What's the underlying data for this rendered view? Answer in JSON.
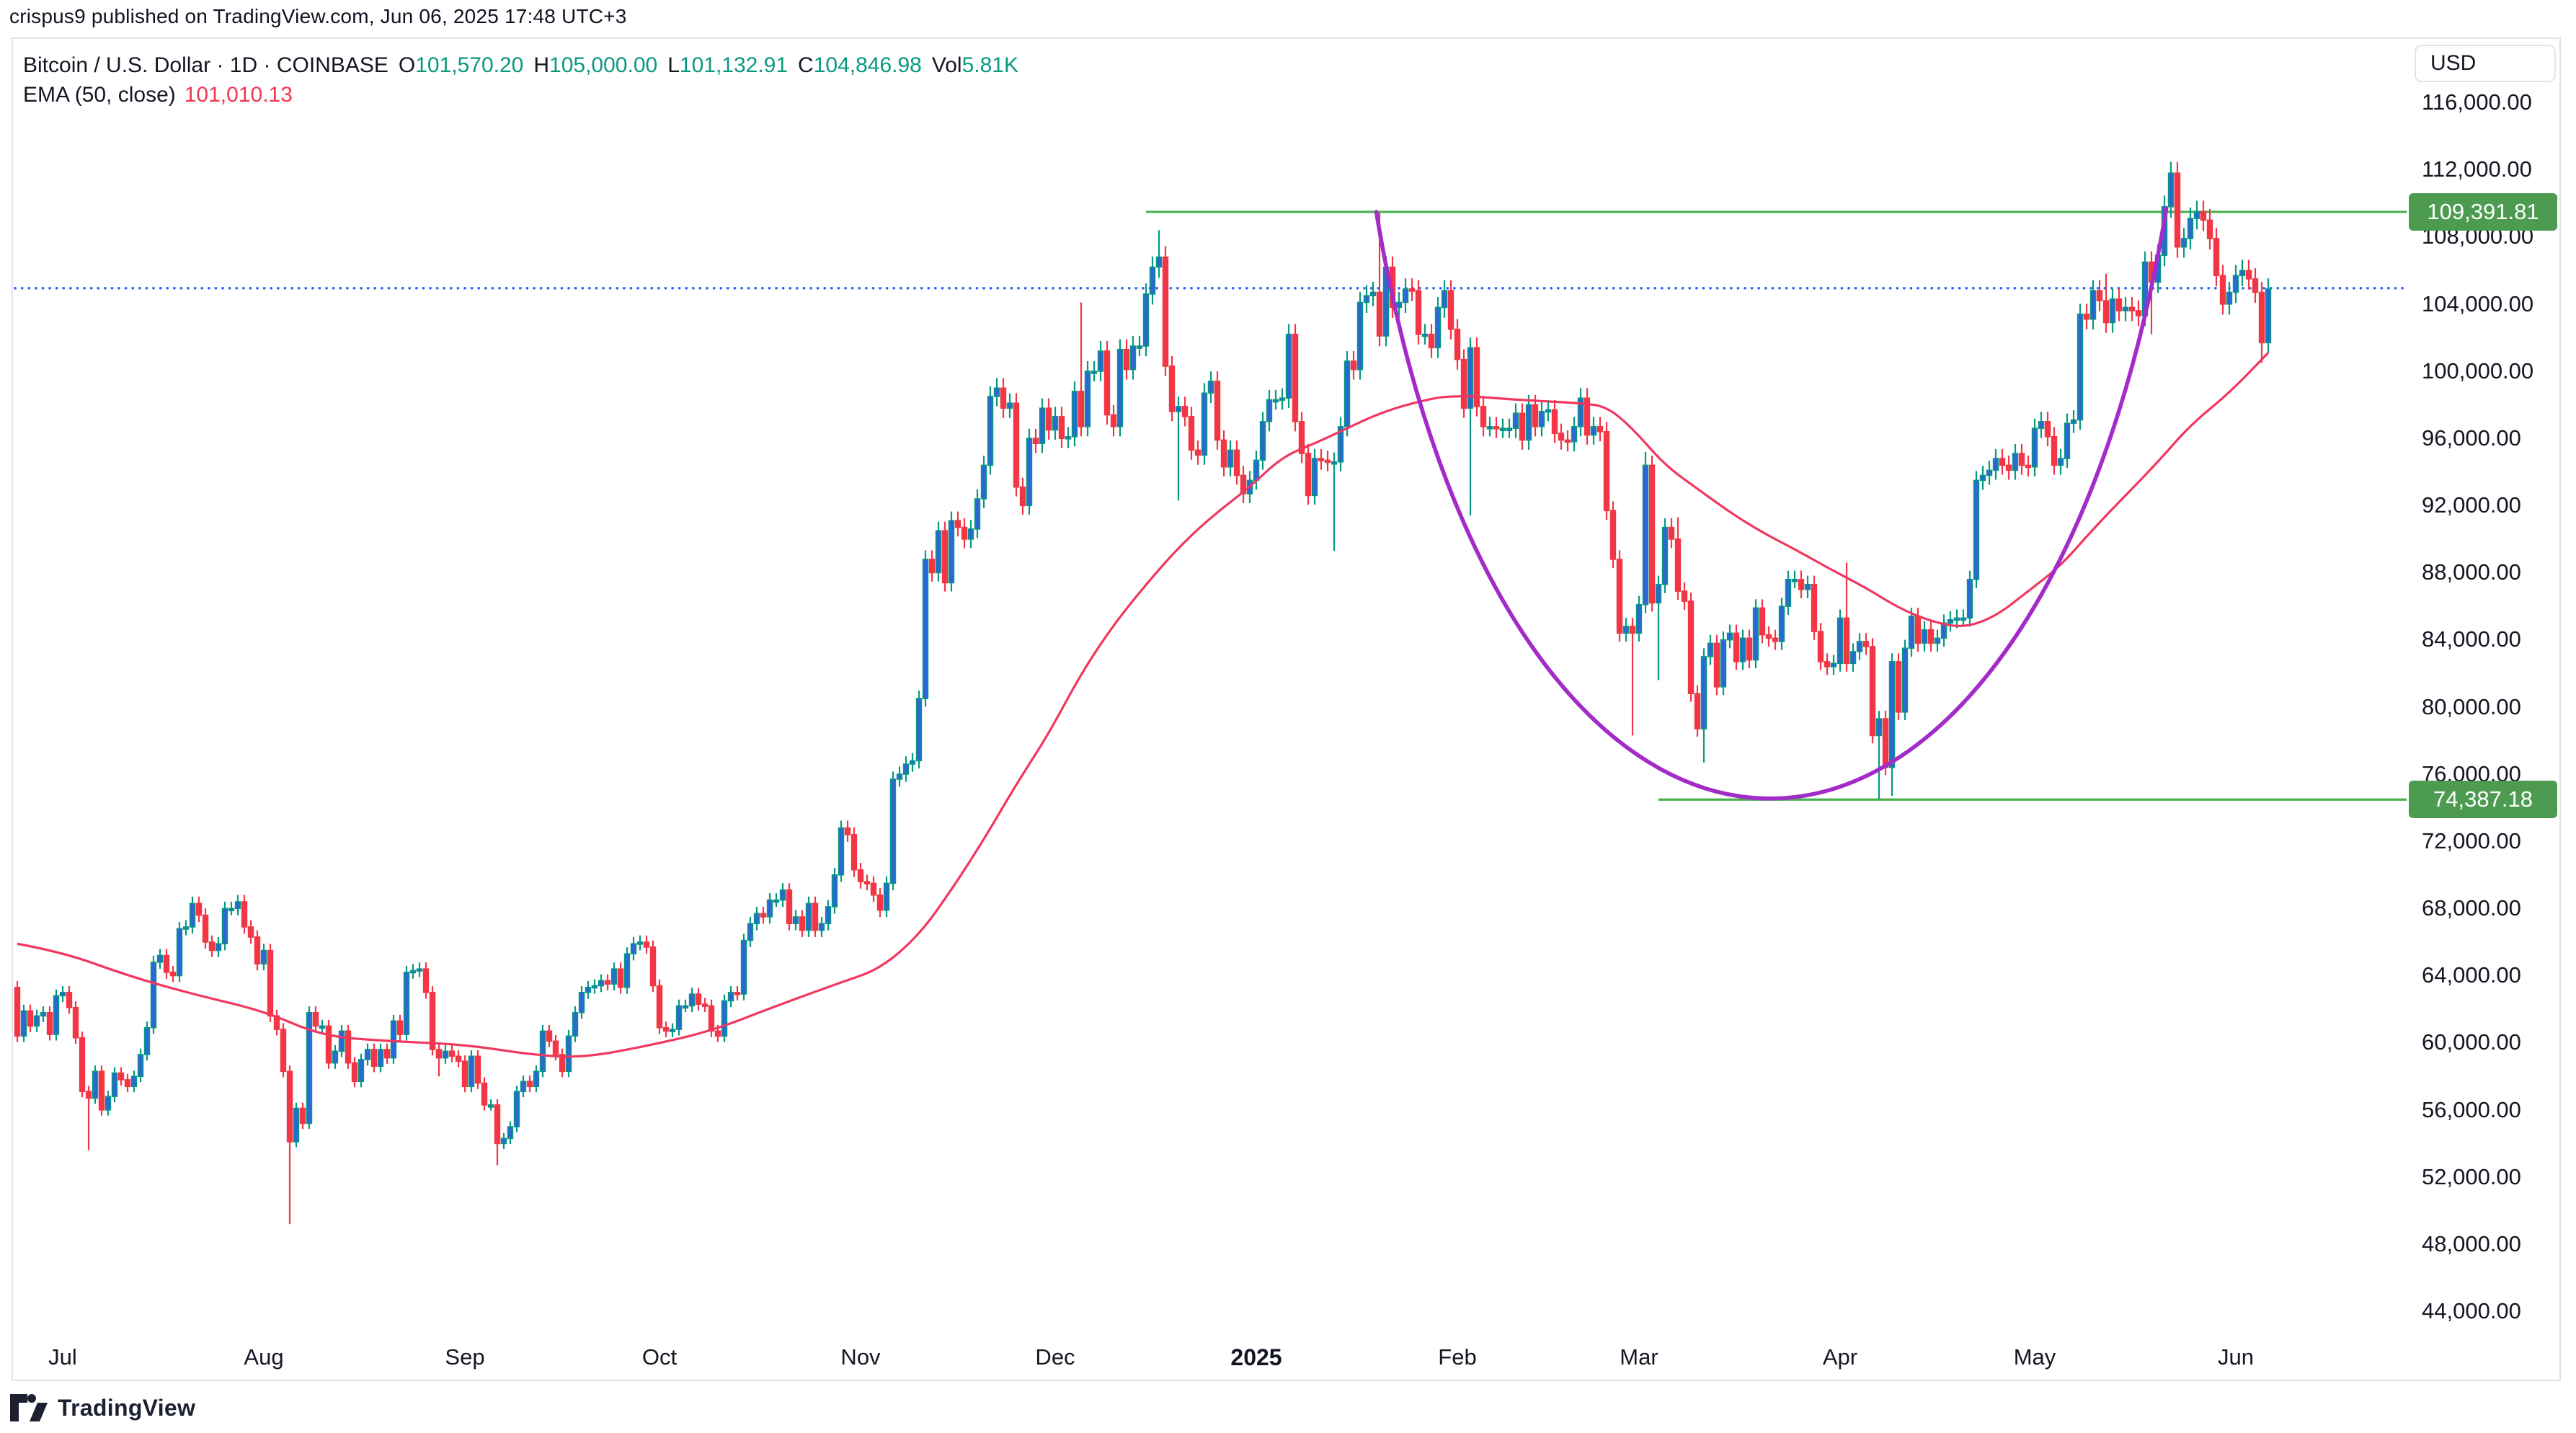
{
  "attribution": "crispus9 published on TradingView.com, Jun 06, 2025 17:48 UTC+3",
  "legend": {
    "symbol": "Bitcoin / U.S. Dollar",
    "interval": "1D",
    "exchange": "COINBASE",
    "separator": "·",
    "fields": [
      {
        "label": "O",
        "value": "101,570.20"
      },
      {
        "label": "H",
        "value": "105,000.00"
      },
      {
        "label": "L",
        "value": "101,132.91"
      },
      {
        "label": "C",
        "value": "104,846.98"
      },
      {
        "label": "Vol",
        "value": "5.81K"
      }
    ],
    "indicator": {
      "name": "EMA (50, close)",
      "value": "101,010.13"
    }
  },
  "price_scale": {
    "unit": "USD",
    "ticks": [
      "116,000.00",
      "112,000.00",
      "108,000.00",
      "104,000.00",
      "100,000.00",
      "96,000.00",
      "92,000.00",
      "88,000.00",
      "84,000.00",
      "80,000.00",
      "76,000.00",
      "72,000.00",
      "68,000.00",
      "64,000.00",
      "60,000.00",
      "56,000.00",
      "52,000.00",
      "48,000.00",
      "44,000.00"
    ],
    "tick_values_k": [
      116,
      112,
      108,
      104,
      100,
      96,
      92,
      88,
      84,
      80,
      76,
      72,
      68,
      64,
      60,
      56,
      52,
      48,
      44
    ],
    "badges": [
      {
        "text": "109,391.81",
        "price_k": 109.39181
      },
      {
        "text": "74,387.18",
        "price_k": 74.38718
      }
    ]
  },
  "time_scale": {
    "labels": [
      {
        "text": "Jul",
        "day": 0,
        "bold": false
      },
      {
        "text": "Aug",
        "day": 31,
        "bold": false
      },
      {
        "text": "Sep",
        "day": 62,
        "bold": false
      },
      {
        "text": "Oct",
        "day": 92,
        "bold": false
      },
      {
        "text": "Nov",
        "day": 123,
        "bold": false
      },
      {
        "text": "Dec",
        "day": 153,
        "bold": false
      },
      {
        "text": "2025",
        "day": 184,
        "bold": true
      },
      {
        "text": "Feb",
        "day": 215,
        "bold": false
      },
      {
        "text": "Mar",
        "day": 243,
        "bold": false
      },
      {
        "text": "Apr",
        "day": 274,
        "bold": false
      },
      {
        "text": "May",
        "day": 304,
        "bold": false
      },
      {
        "text": "Jun",
        "day": 335,
        "bold": false
      }
    ]
  },
  "logo_text": "TradingView",
  "colors": {
    "up_wick": "#089981",
    "up_body": "#2B67D6",
    "down": "#F23645",
    "ema": "#F1375F",
    "purple": "#A32CC8",
    "level_line": "#4CAF50",
    "level_badge": "#4C9B50",
    "price_line": "#2962FF",
    "text": "#131722",
    "border": "#E0E3EB"
  },
  "chart_data": {
    "type": "candlestick",
    "title": "Bitcoin / U.S. Dollar, 1D, COINBASE with EMA(50) and cup pattern drawing",
    "x_unit": "days since 2024-07-01 (first bar 2024-06-24 = day -7, last bar 2025-06-06 = day 340)",
    "y_unit": "USD (values in thousands)",
    "ylim_k": [
      44,
      116
    ],
    "grid": false,
    "first_day": -7,
    "open_first_k": 63.2,
    "closes_k": [
      60.3,
      61.8,
      60.9,
      61.5,
      61.7,
      60.4,
      62.7,
      62.9,
      62.0,
      60.2,
      57.0,
      56.6,
      58.2,
      55.9,
      56.7,
      58.1,
      57.7,
      57.3,
      57.9,
      59.2,
      60.8,
      64.7,
      65.1,
      64.1,
      63.9,
      66.7,
      66.8,
      68.2,
      67.5,
      65.9,
      65.4,
      65.8,
      67.9,
      67.9,
      68.3,
      66.8,
      66.2,
      64.6,
      65.4,
      61.5,
      60.7,
      58.2,
      54.0,
      56.0,
      55.1,
      61.7,
      60.9,
      60.9,
      58.7,
      59.4,
      60.6,
      58.7,
      57.6,
      58.9,
      59.5,
      58.5,
      59.5,
      59.0,
      61.2,
      60.4,
      64.1,
      64.2,
      64.3,
      62.9,
      59.5,
      59.0,
      59.4,
      59.1,
      58.8,
      57.3,
      59.1,
      57.5,
      56.2,
      56.2,
      53.9,
      54.2,
      54.9,
      57.0,
      57.6,
      57.3,
      58.2,
      60.6,
      60.0,
      59.2,
      58.2,
      60.3,
      61.7,
      62.9,
      63.2,
      63.3,
      63.6,
      63.4,
      64.3,
      63.2,
      65.2,
      65.8,
      65.9,
      65.6,
      63.3,
      60.8,
      60.6,
      60.7,
      62.1,
      62.1,
      62.8,
      62.2,
      62.1,
      60.6,
      60.3,
      62.4,
      62.9,
      62.8,
      66.0,
      67.0,
      67.6,
      67.4,
      68.4,
      68.4,
      69.0,
      67.0,
      67.4,
      66.6,
      68.2,
      66.6,
      67.0,
      68.0,
      69.9,
      72.7,
      72.3,
      70.2,
      69.5,
      69.4,
      68.7,
      67.8,
      69.4,
      75.6,
      75.9,
      76.5,
      76.7,
      80.4,
      88.7,
      87.9,
      90.4,
      87.3,
      91.0,
      90.6,
      89.9,
      90.5,
      92.3,
      94.3,
      98.4,
      98.9,
      97.7,
      98.0,
      93.0,
      91.9,
      95.9,
      95.6,
      97.7,
      96.4,
      97.2,
      95.9,
      96.0,
      98.7,
      96.6,
      99.9,
      99.9,
      101.1,
      97.3,
      96.6,
      101.2,
      100.0,
      101.4,
      101.4,
      104.5,
      106.1,
      106.7,
      100.2,
      97.5,
      97.8,
      97.2,
      95.2,
      94.9,
      98.6,
      99.3,
      95.8,
      94.2,
      95.2,
      93.7,
      92.6,
      93.4,
      94.6,
      96.9,
      98.2,
      98.2,
      98.3,
      102.1,
      96.9,
      95.0,
      92.5,
      94.7,
      94.6,
      94.5,
      94.5,
      96.6,
      100.5,
      100.0,
      104.0,
      104.4,
      104.6,
      102.0,
      106.1,
      103.7,
      104.0,
      104.8,
      104.7,
      102.1,
      102.1,
      101.3,
      103.7,
      104.7,
      102.4,
      100.6,
      97.7,
      101.3,
      97.8,
      96.6,
      96.6,
      96.5,
      96.5,
      96.5,
      97.4,
      95.8,
      97.9,
      96.6,
      97.5,
      97.6,
      96.2,
      95.8,
      95.7,
      96.6,
      98.3,
      96.1,
      96.6,
      96.3,
      91.6,
      88.7,
      84.3,
      84.7,
      84.3,
      86.0,
      94.3,
      86.1,
      87.2,
      90.6,
      89.9,
      86.8,
      86.2,
      80.7,
      78.6,
      82.9,
      83.7,
      81.1,
      83.9,
      84.3,
      82.6,
      84.0,
      82.7,
      85.8,
      84.2,
      84.0,
      83.8,
      85.9,
      87.5,
      87.5,
      86.9,
      87.2,
      84.4,
      82.6,
      82.3,
      82.5,
      85.2,
      82.5,
      83.2,
      83.8,
      83.5,
      78.2,
      79.2,
      76.3,
      82.6,
      79.6,
      83.4,
      85.3,
      83.7,
      84.5,
      83.7,
      84.0,
      84.9,
      85.1,
      85.2,
      85.2,
      87.5,
      93.4,
      93.7,
      94.0,
      94.7,
      94.3,
      94.0,
      95.0,
      94.3,
      94.2,
      96.5,
      96.9,
      96.0,
      94.3,
      94.7,
      96.8,
      97.0,
      103.3,
      103.0,
      104.7,
      104.1,
      102.8,
      104.2,
      103.5,
      103.7,
      103.5,
      103.2,
      106.4,
      105.2,
      106.8,
      109.7,
      111.7,
      107.3,
      107.8,
      109.0,
      109.4,
      108.9,
      107.8,
      105.6,
      103.9,
      104.6,
      105.6,
      105.9,
      105.4,
      104.6,
      101.6,
      104.8
    ],
    "default_wick_pct": 0.6,
    "wick_highs_k": {
      "157": 104.0,
      "169": 108.3,
      "189": 102.7,
      "203": 109.36,
      "244": 95.1,
      "249": 91.2,
      "275": 88.5,
      "315": 105.7,
      "325": 112.0,
      "340": 105.0
    },
    "wick_lows_k": {
      "4": 53.5,
      "35": 49.1,
      "58": 57.9,
      "67": 52.6,
      "172": 92.2,
      "196": 89.2,
      "217": 91.3,
      "242": 78.2,
      "246": 81.5,
      "253": 76.6,
      "280": 74.4,
      "282": 74.6,
      "322": 102.1,
      "339": 100.4,
      "340": 101.1
    },
    "ema": {
      "name": "EMA (50, close)",
      "last_value": 101010.13,
      "anchors_day_valk": [
        [
          -7,
          65.8
        ],
        [
          0,
          65.3
        ],
        [
          10,
          63.9
        ],
        [
          20,
          62.8
        ],
        [
          31,
          61.8
        ],
        [
          40,
          60.3
        ],
        [
          50,
          60.0
        ],
        [
          62,
          59.8
        ],
        [
          72,
          59.2
        ],
        [
          80,
          59.0
        ],
        [
          90,
          59.7
        ],
        [
          100,
          60.6
        ],
        [
          110,
          62.1
        ],
        [
          120,
          63.5
        ],
        [
          126,
          64.3
        ],
        [
          132,
          66.3
        ],
        [
          137,
          69.0
        ],
        [
          142,
          72.0
        ],
        [
          147,
          75.3
        ],
        [
          152,
          78.3
        ],
        [
          157,
          81.9
        ],
        [
          162,
          84.8
        ],
        [
          167,
          87.2
        ],
        [
          172,
          89.4
        ],
        [
          177,
          91.2
        ],
        [
          183,
          93.0
        ],
        [
          188,
          94.8
        ],
        [
          193,
          95.6
        ],
        [
          198,
          96.5
        ],
        [
          203,
          97.4
        ],
        [
          208,
          98.0
        ],
        [
          214,
          98.5
        ],
        [
          224,
          98.2
        ],
        [
          234,
          98.0
        ],
        [
          238,
          97.8
        ],
        [
          242,
          96.5
        ],
        [
          247,
          94.3
        ],
        [
          252,
          92.9
        ],
        [
          257,
          91.5
        ],
        [
          262,
          90.3
        ],
        [
          267,
          89.3
        ],
        [
          273,
          88.0
        ],
        [
          278,
          87.0
        ],
        [
          283,
          85.8
        ],
        [
          288,
          85.0
        ],
        [
          293,
          84.6
        ],
        [
          298,
          85.3
        ],
        [
          303,
          86.8
        ],
        [
          308,
          88.3
        ],
        [
          313,
          90.5
        ],
        [
          318,
          92.5
        ],
        [
          323,
          94.5
        ],
        [
          328,
          96.7
        ],
        [
          334,
          98.6
        ],
        [
          340,
          101.0
        ]
      ]
    },
    "levels": [
      {
        "price": 109391.81,
        "from_day": 167
      },
      {
        "price": 74387.18,
        "from_day": 246
      }
    ],
    "price_line_value": 104846.98,
    "cup_drawing": {
      "start_day_pricek": [
        202.5,
        109.39
      ],
      "bottom_day_pricek": [
        263.0,
        74.45
      ],
      "end_day_pricek": [
        324.3,
        109.6
      ]
    }
  }
}
